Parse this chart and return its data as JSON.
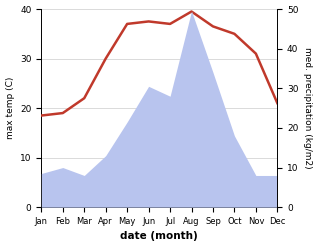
{
  "months": [
    "Jan",
    "Feb",
    "Mar",
    "Apr",
    "May",
    "Jun",
    "Jul",
    "Aug",
    "Sep",
    "Oct",
    "Nov",
    "Dec"
  ],
  "temperature": [
    18.5,
    19.0,
    22.0,
    30.0,
    37.0,
    37.5,
    37.0,
    39.5,
    36.5,
    35.0,
    31.0,
    21.0
  ],
  "precipitation": [
    8.5,
    10.0,
    8.0,
    13.0,
    21.5,
    30.5,
    28.0,
    49.5,
    34.0,
    18.0,
    8.0,
    8.0
  ],
  "temp_color": "#c0392b",
  "precip_fill_color": "#b8c4ee",
  "temp_ylim": [
    0,
    40
  ],
  "precip_ylim": [
    0,
    50
  ],
  "temp_yticks": [
    0,
    10,
    20,
    30,
    40
  ],
  "precip_yticks": [
    0,
    10,
    20,
    30,
    40,
    50
  ],
  "xlabel": "date (month)",
  "ylabel_left": "max temp (C)",
  "ylabel_right": "med. precipitation (kg/m2)",
  "bg_color": "#f0f0f0",
  "figsize": [
    3.18,
    2.47
  ],
  "dpi": 100
}
